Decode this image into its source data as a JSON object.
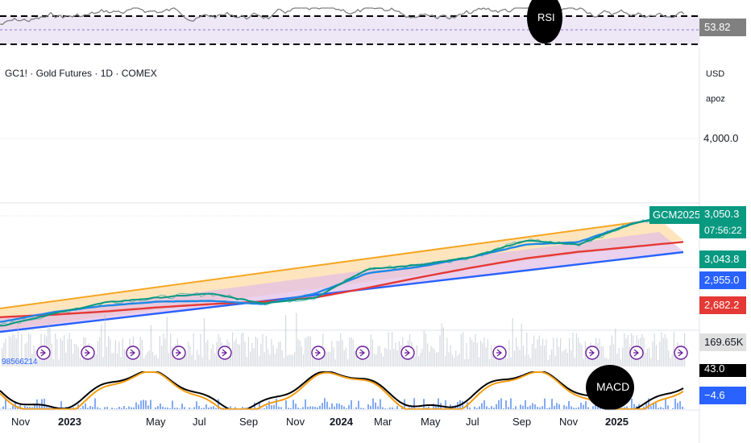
{
  "header": {
    "symbol_line": "GC1! · Gold Futures · 1D · COMEX",
    "currency": "USD",
    "user": "apoz"
  },
  "rsi_panel": {
    "label": "RSI",
    "value": "53.82"
  },
  "price_axis": {
    "top_label": "4,000.0",
    "contract": "GCM2025",
    "last_price": "3,050.3",
    "countdown": "07:56:22",
    "ma_fast": "3,043.8",
    "ma_mid": "2,955.0",
    "ma_slow": "2,682.2"
  },
  "volume": {
    "left_value": "98566214",
    "right_value": "169.65K"
  },
  "macd_panel": {
    "label": "MACD",
    "value_top": "43.0",
    "value_bottom": "−4.6"
  },
  "time_axis": [
    "Nov",
    "2023",
    "May",
    "Jul",
    "Sep",
    "Nov",
    "2024",
    "Mar",
    "May",
    "Jul",
    "Sep",
    "Nov",
    "2025"
  ],
  "colors": {
    "rsi_line": "#808080",
    "rsi_band": "#ede7f6",
    "channel_orange": "#f5a623",
    "channel_fill": "#ffe0b2",
    "channel_inner_fill": "#e1bee7",
    "trend_blue": "#2962ff",
    "ma_green": "#089981",
    "ma_blue": "#1e88e5",
    "ma_red": "#e53935",
    "macd_line": "#000000",
    "signal_line": "#f39c12",
    "hist_blue": "#5b8def",
    "badge_green": "#089981",
    "badge_blue": "#2962ff",
    "badge_red": "#e53935",
    "badge_grey": "#e0e0e0"
  },
  "chart_data": {
    "type": "line",
    "title": "GC1! · Gold Futures · 1D · COMEX",
    "x_range": [
      "2022-10",
      "2025-04"
    ],
    "y_ticks": [
      4000.0
    ],
    "series": [
      {
        "name": "",
        "values": [
          1650,
          1800,
          1940,
          2000,
          2050,
          1930,
          2000,
          2350,
          2400,
          2500,
          2700,
          2650,
          2900,
          3050
        ]
      },
      {
        "name": "",
        "values": [
          1700,
          1820,
          1900,
          1950,
          1960,
          1920,
          2050,
          2300,
          2380,
          2500,
          2650,
          2680,
          2900,
          3043.8
        ]
      },
      {
        "name": "",
        "values": [
          1760,
          1790,
          1830,
          1880,
          1920,
          1950,
          2000,
          2120,
          2250,
          2370,
          2480,
          2560,
          2620,
          2682.2
        ]
      }
    ],
    "markers": [],
    "legend": "none",
    "grid": true
  }
}
